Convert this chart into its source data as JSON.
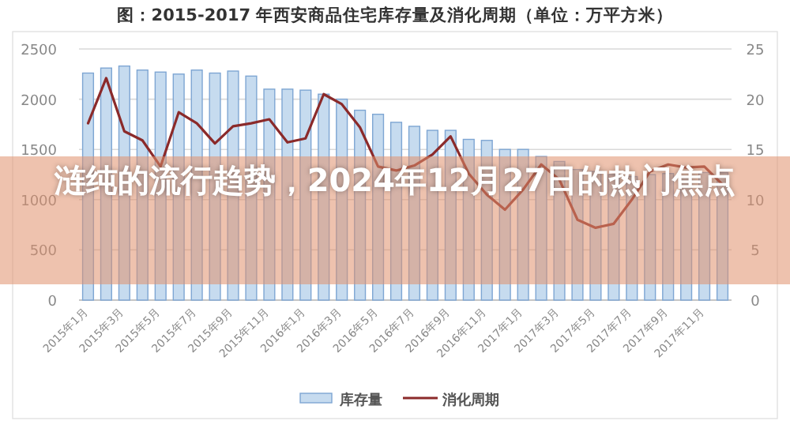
{
  "chart_data": {
    "type": "bar",
    "title": "图：2015-2017 年西安商品住宅库存量及消化周期（单位：万平方米）",
    "annotations": [
      "涟纯的流行趋势，2024年12月27日的热门焦点"
    ],
    "categories": [
      "2015年1月",
      null,
      "2015年3月",
      null,
      "2015年5月",
      null,
      "2015年7月",
      null,
      "2015年9月",
      null,
      "2015年11月",
      null,
      "2016年1月",
      null,
      "2016年3月",
      null,
      "2016年5月",
      null,
      "2016年7月",
      null,
      "2016年9月",
      null,
      "2016年11月",
      null,
      "2017年1月",
      null,
      "2017年3月",
      null,
      "2017年5月",
      null,
      "2017年7月",
      null,
      "2017年9月",
      null,
      "2017年11月",
      null
    ],
    "series": [
      {
        "name": "库存量",
        "color": "#c6dbef",
        "values": [
          2260,
          2310,
          2330,
          2290,
          2270,
          2250,
          2290,
          2260,
          2280,
          2230,
          2100,
          2100,
          2090,
          2050,
          2000,
          1890,
          1850,
          1770,
          1730,
          1690,
          1690,
          1600,
          1590,
          1500,
          1500,
          1430,
          1380,
          1300,
          1280,
          1250,
          1230,
          1250,
          1260,
          1230,
          1270,
          1270
        ]
      },
      {
        "name": "消化周期",
        "type": "line",
        "axis": "y2",
        "color": "#8b2a2a",
        "values": [
          17.6,
          22.1,
          16.8,
          15.9,
          13.3,
          18.7,
          17.6,
          15.6,
          17.3,
          17.6,
          18.0,
          15.7,
          16.1,
          20.5,
          19.5,
          17.2,
          13.3,
          12.9,
          13.4,
          14.5,
          16.3,
          12.6,
          10.5,
          9.0,
          11.0,
          13.5,
          12.0,
          8.0,
          7.2,
          7.6,
          10.0,
          12.8,
          13.5,
          13.2,
          13.3,
          11.5
        ]
      }
    ],
    "ylim": [
      0,
      2500
    ],
    "yticks": [
      0,
      500,
      1000,
      1500,
      2000,
      2500
    ],
    "y2lim": [
      0,
      25
    ],
    "y2ticks": [
      0,
      5,
      10,
      15,
      20,
      25
    ],
    "grid": "y",
    "legend": "bottom",
    "marker": "none",
    "line_style": "solid"
  }
}
